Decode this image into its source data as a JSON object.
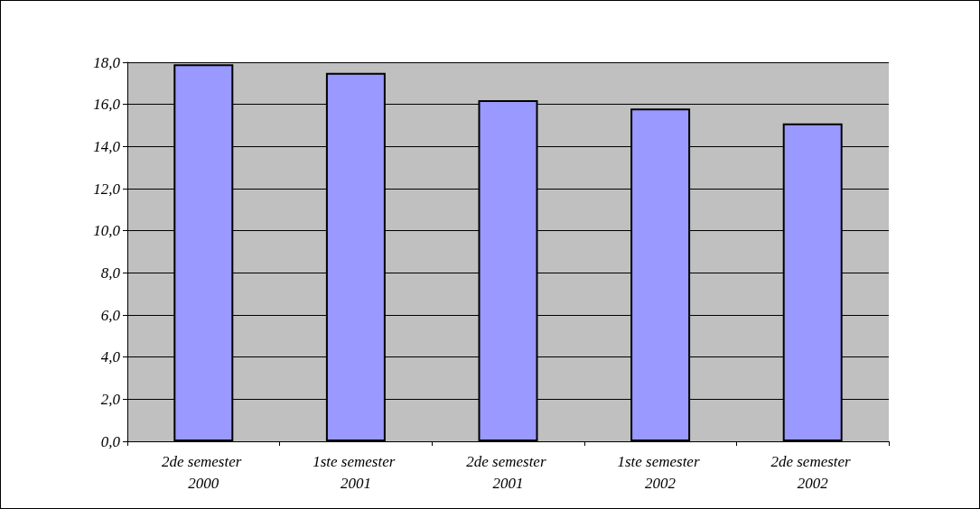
{
  "chart_data": {
    "type": "bar",
    "categories": [
      "2de semester 2000",
      "1ste semester 2001",
      "2de semester 2001",
      "1ste semester 2002",
      "2de semester 2002"
    ],
    "values": [
      17.9,
      17.5,
      16.2,
      15.8,
      15.1
    ],
    "color": "#9999ff",
    "ylim": [
      0,
      18
    ],
    "yticks": [
      {
        "value": 0,
        "label": "0,0"
      },
      {
        "value": 2,
        "label": "2,0"
      },
      {
        "value": 4,
        "label": "4,0"
      },
      {
        "value": 6,
        "label": "6,0"
      },
      {
        "value": 8,
        "label": "8,0"
      },
      {
        "value": 10,
        "label": "10,0"
      },
      {
        "value": 12,
        "label": "12,0"
      },
      {
        "value": 14,
        "label": "14,0"
      },
      {
        "value": 16,
        "label": "16,0"
      },
      {
        "value": 18,
        "label": "18,0"
      }
    ],
    "grid": true
  }
}
